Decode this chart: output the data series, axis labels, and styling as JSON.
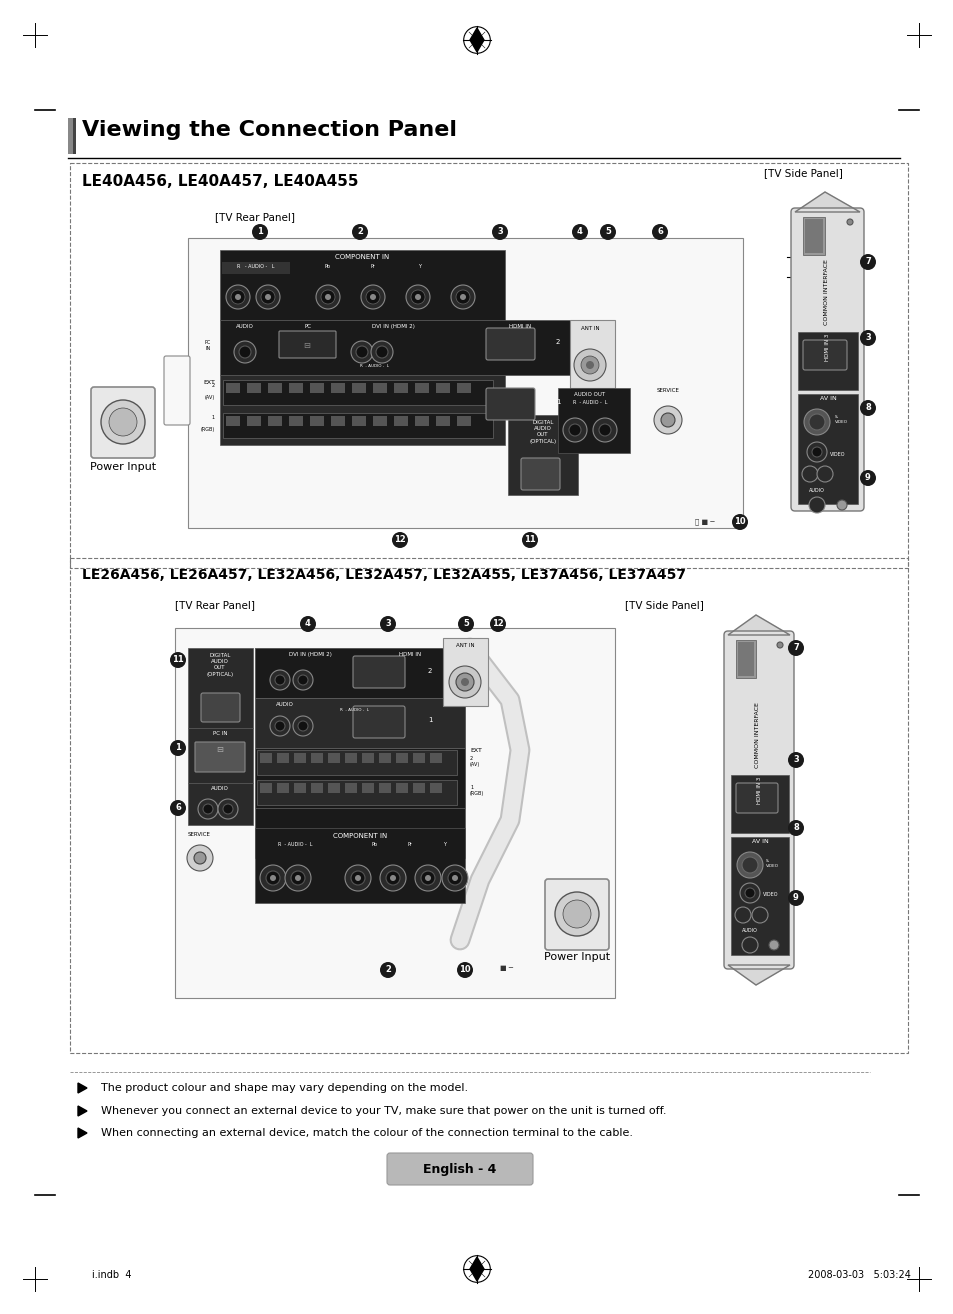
{
  "title": "Viewing the Connection Panel",
  "page_bg": "#ffffff",
  "section1_label": "LE40A456, LE40A457, LE40A455",
  "section2_label": "LE26A456, LE26A457, LE32A456, LE32A457, LE32A455, LE37A456, LE37A457",
  "tv_rear_panel": "[TV Rear Panel]",
  "tv_side_panel": "[TV Side Panel]",
  "power_input": "Power Input",
  "note1": "  The product colour and shape may vary depending on the model.",
  "note2": "  Whenever you connect an external device to your TV, make sure that power on the unit is turned off.",
  "note3": "  When connecting an external device, match the colour of the connection terminal to the cable.",
  "footer": "English - 4",
  "footer_date": "2008-03-03   ¡ÀÈÃ 5:03:24",
  "footer_file": "□□i.indb  4"
}
